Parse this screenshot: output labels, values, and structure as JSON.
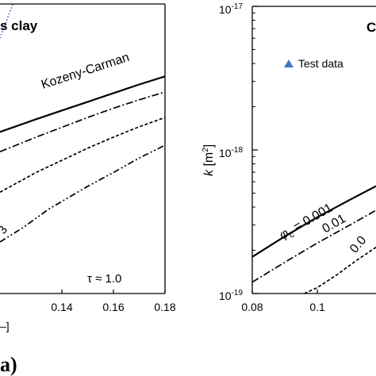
{
  "chart_data": [
    {
      "type": "line",
      "panel_title": "s clay",
      "x_axis_label": "–]",
      "x_ticks": [
        "0.14",
        "0.16",
        "0.18"
      ],
      "x_tick_values": [
        0.14,
        0.16,
        0.18
      ],
      "xlim": [
        0.116,
        0.18
      ],
      "ylim": [
        0,
        1
      ],
      "tau_annotation": "τ ≈ 1.0",
      "partial_label": "3",
      "panel_letter": "a)",
      "series": [
        {
          "name": "Kozeny-Carman",
          "style": "solid",
          "x": [
            0.116,
            0.13,
            0.14,
            0.15,
            0.16,
            0.17,
            0.18
          ],
          "y": [
            0.558,
            0.602,
            0.632,
            0.662,
            0.692,
            0.722,
            0.75
          ]
        },
        {
          "name": "",
          "style": "dash-dot",
          "x": [
            0.116,
            0.13,
            0.14,
            0.15,
            0.16,
            0.17,
            0.18
          ],
          "y": [
            0.49,
            0.54,
            0.574,
            0.608,
            0.64,
            0.669,
            0.696
          ]
        },
        {
          "name": "",
          "style": "dashed",
          "x": [
            0.116,
            0.13,
            0.14,
            0.15,
            0.16,
            0.17,
            0.18
          ],
          "y": [
            0.35,
            0.418,
            0.46,
            0.502,
            0.54,
            0.576,
            0.608
          ]
        },
        {
          "name": "",
          "style": "dash-dot-dot",
          "x": [
            0.116,
            0.125,
            0.135,
            0.15,
            0.16,
            0.17,
            0.18
          ],
          "y": [
            0.178,
            0.228,
            0.292,
            0.37,
            0.418,
            0.468,
            0.512
          ]
        },
        {
          "name": "Test data",
          "style": "dotted-blue",
          "x": [
            0.116,
            0.118,
            0.121
          ],
          "y": [
            0.882,
            0.93,
            1.0
          ]
        }
      ]
    },
    {
      "type": "line",
      "panel_title": "C",
      "y_axis_label_base": "k",
      "y_axis_label_unit": " [m",
      "y_axis_label_exp": "2",
      "y_axis_label_close": "]",
      "y_scale": "log",
      "ylim": [
        1e-19,
        1e-17
      ],
      "y_ticks": [
        {
          "base": "10",
          "exp": "-17",
          "value": 1e-17
        },
        {
          "base": "10",
          "exp": "-18",
          "value": 1e-18
        },
        {
          "base": "10",
          "exp": "-19",
          "value": 1e-19
        }
      ],
      "x_ticks": [
        "0.08",
        "0.1"
      ],
      "x_tick_values": [
        0.08,
        0.1
      ],
      "xlim": [
        0.08,
        0.118
      ],
      "legend": [
        {
          "label": "Test data",
          "marker": "triangle",
          "color": "#4472c4"
        }
      ],
      "curve_labels": {
        "phi_symbol": "φ",
        "phi_sub": "c",
        "phi_value": " = 0.001",
        "label_2": "0.01",
        "label_3": "0.0"
      },
      "series": [
        {
          "name": "φc = 0.001",
          "style": "solid",
          "x": [
            0.08,
            0.09,
            0.1,
            0.11,
            0.118
          ],
          "y": [
            1.8e-19,
            2.5e-19,
            3.4e-19,
            4.5e-19,
            5.6e-19
          ]
        },
        {
          "name": "0.01",
          "style": "dash-dot",
          "x": [
            0.08,
            0.09,
            0.1,
            0.11,
            0.118
          ],
          "y": [
            1.2e-19,
            1.65e-19,
            2.25e-19,
            3e-19,
            3.8e-19
          ]
        },
        {
          "name": "0.0",
          "style": "dashed",
          "x": [
            0.096,
            0.1,
            0.106,
            0.112,
            0.118
          ],
          "y": [
            1e-19,
            1.1e-19,
            1.35e-19,
            1.7e-19,
            2.1e-19
          ]
        }
      ]
    }
  ],
  "colors": {
    "test_data": "#4472c4",
    "lines": "#000000"
  }
}
